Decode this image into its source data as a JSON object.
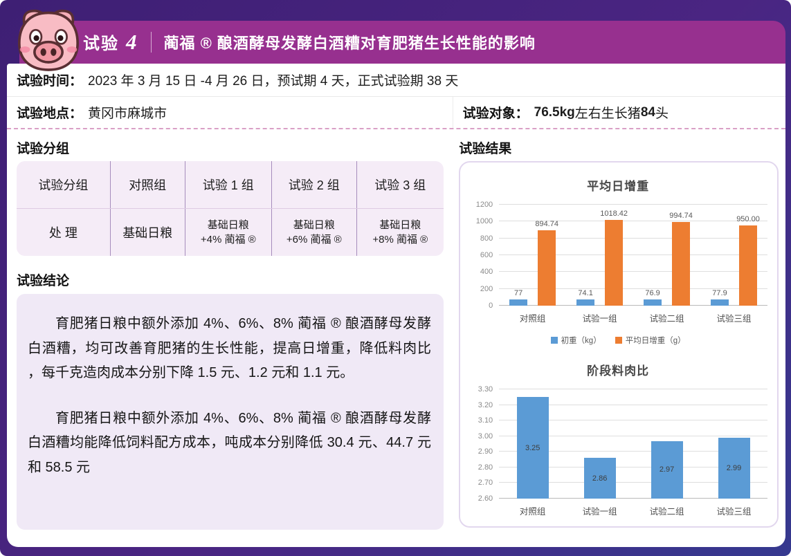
{
  "header": {
    "trial_label": "试验",
    "trial_number": "4",
    "title": "蔺福 ® 酿酒酵母发酵白酒糟对育肥猪生长性能的影响",
    "banner_color": "#97308f",
    "frame_color": "#3e1f74",
    "mascot": "pig-icon"
  },
  "info": {
    "time_label": "试验时间：",
    "time_value": "2023 年 3 月 15 日 -4 月 26 日，预试期 4 天，正式试验期 38 天",
    "location_label": "试验地点：",
    "location_value": "黄冈市麻城市",
    "subject_label": "试验对象：",
    "subject_bold1": "76.5kg",
    "subject_mid": " 左右生长猪 ",
    "subject_bold2": "84",
    "subject_tail": " 头"
  },
  "grouping": {
    "heading": "试验分组",
    "table": {
      "header_row": [
        "试验分组",
        "对照组",
        "试验 1 组",
        "试验 2 组",
        "试验 3 组"
      ],
      "treat_label": "处 理",
      "treat_base": "基础日粮",
      "treatments": [
        {
          "line1": "基础日粮",
          "line2": "+4% 蔺福 ®"
        },
        {
          "line1": "基础日粮",
          "line2": "+6% 蔺福 ®"
        },
        {
          "line1": "基础日粮",
          "line2": "+8% 蔺福 ®"
        }
      ]
    }
  },
  "conclusion": {
    "heading": "试验结论",
    "paragraphs": [
      "育肥猪日粮中额外添加 4%、6%、8% 蔺福 ® 酿酒酵母发酵白酒糟，均可改善育肥猪的生长性能，提高日增重，降低料肉比 ，每千克造肉成本分别下降 1.5 元、1.2 元和 1.1 元。",
      "育肥猪日粮中额外添加 4%、6%、8% 蔺福 ® 酿酒酵母发酵白酒糟均能降低饲料配方成本，吨成本分别降低 30.4 元、44.7 元和 58.5 元"
    ]
  },
  "results": {
    "heading": "试验结果"
  },
  "chart_data": [
    {
      "type": "bar",
      "title": "平均日增重",
      "categories": [
        "对照组",
        "试验一组",
        "试验二组",
        "试验三组"
      ],
      "series": [
        {
          "name": "初重（kg）",
          "color": "#5b9bd5",
          "values": [
            77,
            74.1,
            76.9,
            77.9
          ],
          "labels": [
            "77",
            "74.1",
            "76.9",
            "77.9"
          ]
        },
        {
          "name": "平均日增重（g）",
          "color": "#ed7d31",
          "values": [
            894.74,
            1018.42,
            994.74,
            950.0
          ],
          "labels": [
            "894.74",
            "1018.42",
            "994.74",
            "950.00"
          ]
        }
      ],
      "ylim": [
        0,
        1200
      ],
      "yticks": [
        "0",
        "200",
        "400",
        "600",
        "800",
        "1000",
        "1200"
      ],
      "grid": true,
      "legend_position": "bottom"
    },
    {
      "type": "bar",
      "title": "阶段料肉比",
      "categories": [
        "对照组",
        "试验一组",
        "试验二组",
        "试验三组"
      ],
      "values": [
        3.25,
        2.86,
        2.97,
        2.99
      ],
      "labels": [
        "3.25",
        "2.86",
        "2.97",
        "2.99"
      ],
      "color": "#5b9bd5",
      "ylim": [
        2.6,
        3.3
      ],
      "yticks": [
        "2.60",
        "2.70",
        "2.80",
        "2.90",
        "3.00",
        "3.10",
        "3.20",
        "3.30"
      ],
      "grid": true,
      "legend_position": "none"
    }
  ]
}
